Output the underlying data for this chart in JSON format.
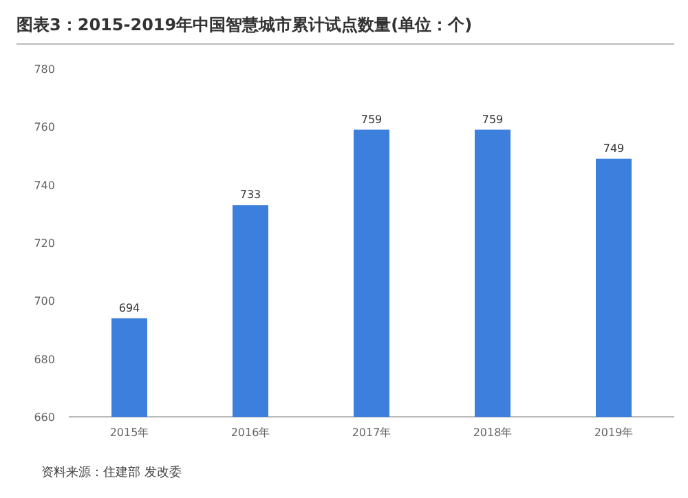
{
  "chart_data": {
    "type": "bar",
    "title": "图表3：2015-2019年中国智慧城市累计试点数量(单位：个)",
    "categories": [
      "2015年",
      "2016年",
      "2017年",
      "2018年",
      "2019年"
    ],
    "values": [
      694,
      733,
      759,
      759,
      749
    ],
    "color": "#3d7fdc",
    "ylim": [
      660,
      780
    ],
    "yticks": [
      660,
      680,
      700,
      720,
      740,
      760,
      780
    ],
    "data_labels": true,
    "grid": false,
    "annotations": [
      "资料来源：住建部 发改委"
    ]
  }
}
